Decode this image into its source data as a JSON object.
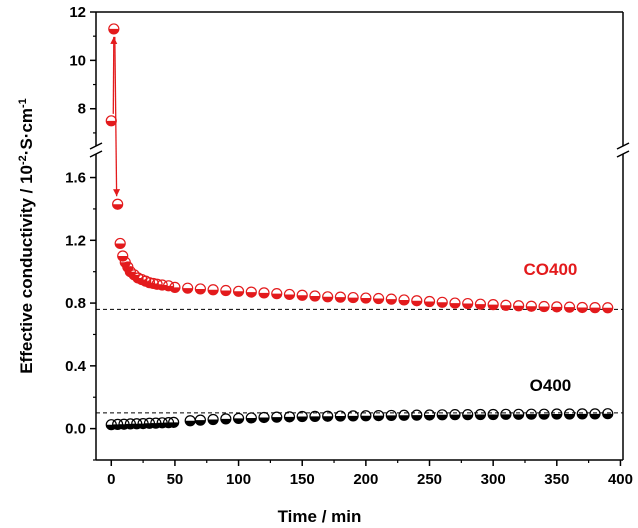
{
  "chart_data": {
    "type": "scatter",
    "xlabel": "Time / min",
    "ylabel": {
      "prefix": "Effective conductivity / 10",
      "exp1": "-2",
      "middle": "·S·cm",
      "exp2": "-1"
    },
    "xlim": [
      -12,
      402
    ],
    "x_ticks": [
      "0",
      "50",
      "100",
      "150",
      "200",
      "250",
      "300",
      "350",
      "400"
    ],
    "y_broken_axis": true,
    "y_upper": {
      "lim": [
        6.5,
        12
      ],
      "ticks": [
        "8",
        "10",
        "12"
      ]
    },
    "y_lower": {
      "lim": [
        -0.2,
        1.75
      ],
      "ticks": [
        "0.0",
        "0.4",
        "0.8",
        "1.2",
        "1.6"
      ]
    },
    "reference_lines": [
      {
        "y": 0.76,
        "style": "dashed"
      },
      {
        "y": 0.1,
        "style": "dashed"
      }
    ],
    "series": [
      {
        "name": "CO400",
        "color": "#e31a1c",
        "marker": "half-filled-circle",
        "points": [
          [
            0,
            7.5
          ],
          [
            2,
            11.3
          ],
          [
            5,
            1.43
          ],
          [
            7,
            1.18
          ],
          [
            9,
            1.1
          ],
          [
            11,
            1.06
          ],
          [
            13,
            1.03
          ],
          [
            15,
            1.0
          ],
          [
            18,
            0.98
          ],
          [
            21,
            0.96
          ],
          [
            24,
            0.95
          ],
          [
            27,
            0.94
          ],
          [
            30,
            0.93
          ],
          [
            33,
            0.925
          ],
          [
            36,
            0.92
          ],
          [
            40,
            0.915
          ],
          [
            45,
            0.91
          ],
          [
            50,
            0.9
          ],
          [
            60,
            0.895
          ],
          [
            70,
            0.89
          ],
          [
            80,
            0.885
          ],
          [
            90,
            0.88
          ],
          [
            100,
            0.875
          ],
          [
            110,
            0.87
          ],
          [
            120,
            0.865
          ],
          [
            130,
            0.86
          ],
          [
            140,
            0.855
          ],
          [
            150,
            0.85
          ],
          [
            160,
            0.845
          ],
          [
            170,
            0.84
          ],
          [
            180,
            0.838
          ],
          [
            190,
            0.835
          ],
          [
            200,
            0.832
          ],
          [
            210,
            0.829
          ],
          [
            220,
            0.825
          ],
          [
            230,
            0.82
          ],
          [
            240,
            0.815
          ],
          [
            250,
            0.81
          ],
          [
            260,
            0.805
          ],
          [
            270,
            0.8
          ],
          [
            280,
            0.797
          ],
          [
            290,
            0.793
          ],
          [
            300,
            0.79
          ],
          [
            310,
            0.786
          ],
          [
            320,
            0.783
          ],
          [
            330,
            0.78
          ],
          [
            340,
            0.778
          ],
          [
            350,
            0.776
          ],
          [
            360,
            0.774
          ],
          [
            370,
            0.772
          ],
          [
            380,
            0.771
          ],
          [
            390,
            0.77
          ]
        ],
        "label_position": "right, above curve"
      },
      {
        "name": "O400",
        "color": "#000000",
        "marker": "half-filled-circle",
        "points": [
          [
            0,
            0.025
          ],
          [
            5,
            0.027
          ],
          [
            10,
            0.028
          ],
          [
            15,
            0.03
          ],
          [
            20,
            0.031
          ],
          [
            25,
            0.032
          ],
          [
            30,
            0.034
          ],
          [
            35,
            0.035
          ],
          [
            40,
            0.037
          ],
          [
            45,
            0.038
          ],
          [
            49,
            0.04
          ],
          [
            62,
            0.05
          ],
          [
            70,
            0.054
          ],
          [
            80,
            0.058
          ],
          [
            90,
            0.062
          ],
          [
            100,
            0.065
          ],
          [
            110,
            0.068
          ],
          [
            120,
            0.071
          ],
          [
            130,
            0.073
          ],
          [
            140,
            0.075
          ],
          [
            150,
            0.077
          ],
          [
            160,
            0.078
          ],
          [
            170,
            0.079
          ],
          [
            180,
            0.08
          ],
          [
            190,
            0.081
          ],
          [
            200,
            0.082
          ],
          [
            210,
            0.083
          ],
          [
            220,
            0.084
          ],
          [
            230,
            0.085
          ],
          [
            240,
            0.086
          ],
          [
            250,
            0.087
          ],
          [
            260,
            0.088
          ],
          [
            270,
            0.089
          ],
          [
            280,
            0.089
          ],
          [
            290,
            0.09
          ],
          [
            300,
            0.09
          ],
          [
            310,
            0.091
          ],
          [
            320,
            0.091
          ],
          [
            330,
            0.092
          ],
          [
            340,
            0.092
          ],
          [
            350,
            0.093
          ],
          [
            360,
            0.093
          ],
          [
            370,
            0.094
          ],
          [
            380,
            0.094
          ],
          [
            390,
            0.095
          ]
        ],
        "label_position": "right, above curve"
      }
    ],
    "grid": false,
    "legend": "none"
  }
}
